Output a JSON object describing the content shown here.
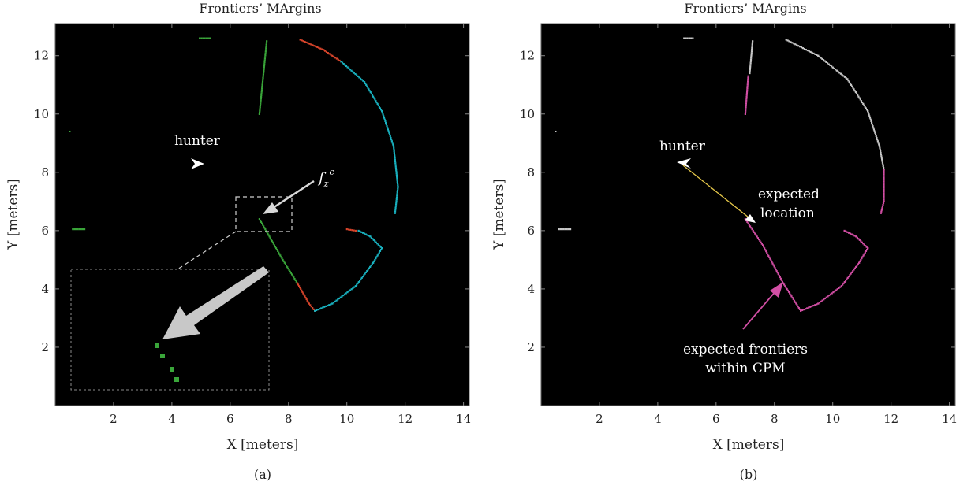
{
  "figure": {
    "panels": [
      {
        "title": "Frontiers’ MArgins",
        "xlabel": "X [meters]",
        "ylabel": "Y [meters]",
        "panel_label": "(a)",
        "annotations": {
          "hunter": "hunter",
          "fz": "f",
          "fz_sub": "z",
          "fz_sup": "c"
        }
      },
      {
        "title": "Frontiers’ MArgins",
        "xlabel": "X [meters]",
        "ylabel": "Y [meters]",
        "panel_label": "(b)",
        "annotations": {
          "hunter": "hunter",
          "expected_location_1": "expected",
          "expected_location_2": "location",
          "frontiers_1": "expected frontiers",
          "frontiers_2": "within CPM"
        }
      }
    ]
  },
  "colors": {
    "background": "#000000",
    "green": "#3aa63a",
    "red": "#d9452b",
    "cyan": "#19b3c1",
    "gray": "#c8c8c8",
    "magenta": "#d34fa5",
    "yellow": "#e6c84a",
    "white": "#ffffff"
  },
  "chart_data": [
    {
      "type": "scatter",
      "title": "Frontiers’ MArgins",
      "xlabel": "X [meters]",
      "ylabel": "Y [meters]",
      "xlim": [
        0,
        14.2
      ],
      "ylim": [
        0,
        13.1
      ],
      "xticks": [
        2,
        4,
        6,
        8,
        10,
        12,
        14
      ],
      "yticks": [
        2,
        4,
        6,
        8,
        10,
        12
      ],
      "grid": false,
      "background": "black",
      "robot_position": [
        4.7,
        8.2
      ],
      "target_location": [
        7.0,
        6.4
      ],
      "zoom_box": [
        6.2,
        5.95,
        8.1,
        7.15
      ],
      "series": [
        {
          "color": "green",
          "points": [
            [
              4.95,
              12.6
            ],
            [
              5.3,
              12.6
            ]
          ]
        },
        {
          "color": "green",
          "points": [
            [
              7.25,
              12.5
            ],
            [
              7.1,
              11.0
            ],
            [
              7.0,
              10.0
            ]
          ]
        },
        {
          "color": "green",
          "points": [
            [
              0.5,
              9.4
            ]
          ]
        },
        {
          "color": "green",
          "points": [
            [
              0.6,
              6.05
            ],
            [
              1.0,
              6.05
            ]
          ]
        },
        {
          "color": "green",
          "points": [
            [
              7.0,
              6.4
            ],
            [
              7.4,
              5.7
            ],
            [
              7.8,
              5.0
            ],
            [
              8.3,
              4.2
            ]
          ]
        },
        {
          "color": "red",
          "points": [
            [
              8.4,
              12.55
            ],
            [
              9.2,
              12.2
            ],
            [
              9.8,
              11.8
            ]
          ]
        },
        {
          "color": "cyan",
          "points": [
            [
              9.8,
              11.8
            ],
            [
              10.6,
              11.1
            ],
            [
              11.2,
              10.1
            ],
            [
              11.6,
              8.9
            ],
            [
              11.75,
              7.5
            ],
            [
              11.65,
              6.6
            ]
          ]
        },
        {
          "color": "red",
          "points": [
            [
              8.3,
              4.2
            ],
            [
              8.7,
              3.5
            ],
            [
              8.9,
              3.25
            ]
          ]
        },
        {
          "color": "cyan",
          "points": [
            [
              8.9,
              3.25
            ],
            [
              9.5,
              3.5
            ],
            [
              10.3,
              4.1
            ],
            [
              10.9,
              4.9
            ],
            [
              11.2,
              5.4
            ],
            [
              10.8,
              5.8
            ],
            [
              10.4,
              6.0
            ]
          ]
        },
        {
          "color": "red",
          "points": [
            [
              10.0,
              6.05
            ],
            [
              10.3,
              6.0
            ]
          ]
        }
      ]
    },
    {
      "type": "scatter",
      "title": "Frontiers’ MArgins",
      "xlabel": "X [meters]",
      "ylabel": "Y [meters]",
      "xlim": [
        0,
        14.2
      ],
      "ylim": [
        0,
        13.1
      ],
      "xticks": [
        2,
        4,
        6,
        8,
        10,
        12,
        14
      ],
      "yticks": [
        2,
        4,
        6,
        8,
        10,
        12
      ],
      "grid": false,
      "background": "black",
      "robot_position": [
        4.7,
        8.2
      ],
      "target_location": [
        7.0,
        6.4
      ],
      "series": [
        {
          "color": "gray",
          "points": [
            [
              4.9,
              12.6
            ],
            [
              5.2,
              12.6
            ]
          ]
        },
        {
          "color": "gray",
          "points": [
            [
              7.25,
              12.5
            ],
            [
              7.15,
              11.4
            ]
          ]
        },
        {
          "color": "magenta",
          "points": [
            [
              7.1,
              11.3
            ],
            [
              7.0,
              10.0
            ]
          ]
        },
        {
          "color": "gray",
          "points": [
            [
              0.5,
              9.4
            ]
          ]
        },
        {
          "color": "gray",
          "points": [
            [
              0.6,
              6.05
            ],
            [
              1.0,
              6.05
            ]
          ]
        },
        {
          "color": "gray",
          "points": [
            [
              8.4,
              12.55
            ],
            [
              9.5,
              12.0
            ],
            [
              10.5,
              11.2
            ],
            [
              11.2,
              10.1
            ],
            [
              11.6,
              8.9
            ],
            [
              11.75,
              8.1
            ]
          ]
        },
        {
          "color": "magenta",
          "points": [
            [
              11.75,
              8.1
            ],
            [
              11.75,
              7.0
            ],
            [
              11.65,
              6.6
            ]
          ]
        },
        {
          "color": "magenta",
          "points": [
            [
              7.0,
              6.4
            ],
            [
              7.6,
              5.5
            ],
            [
              8.3,
              4.2
            ],
            [
              8.9,
              3.25
            ],
            [
              9.5,
              3.5
            ],
            [
              10.3,
              4.1
            ],
            [
              10.9,
              4.9
            ],
            [
              11.2,
              5.4
            ],
            [
              10.8,
              5.8
            ],
            [
              10.4,
              6.0
            ]
          ]
        }
      ]
    }
  ]
}
